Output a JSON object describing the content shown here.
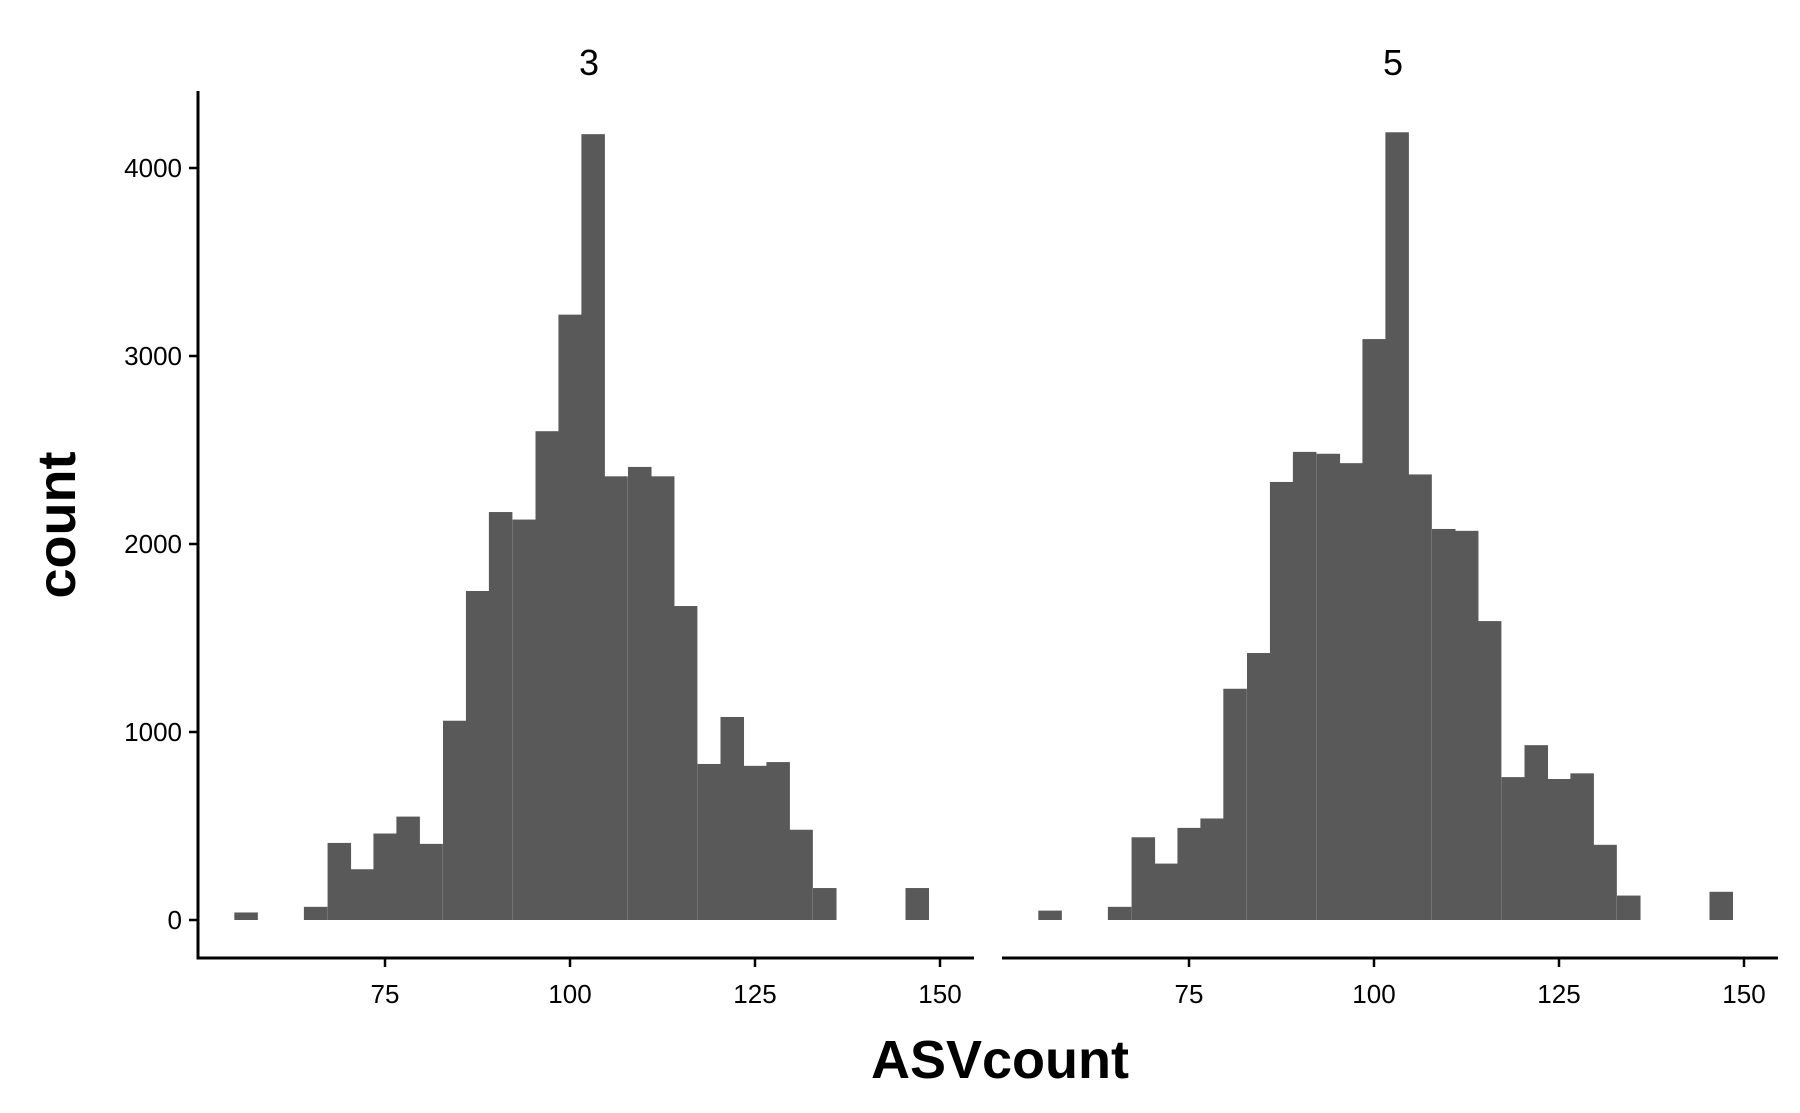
{
  "chart_data": {
    "type": "bar",
    "xlabel": "ASVcount",
    "ylabel": "count",
    "xlim": [
      52,
      154
    ],
    "ylim": [
      -200,
      4450
    ],
    "x_ticks": [
      75,
      100,
      125,
      150
    ],
    "x_tick_labels": [
      "75",
      "100",
      "125",
      "150"
    ],
    "y_ticks": [
      0,
      1000,
      2000,
      3000,
      4000
    ],
    "y_tick_labels": [
      "0",
      "1000",
      "2000",
      "3000",
      "4000"
    ],
    "grid": false,
    "bin_width": 3.125,
    "bar_color": "#595959",
    "panels": [
      {
        "strip_label": "3",
        "bins": [
          {
            "x": 56.2,
            "count": 40
          },
          {
            "x": 65.6,
            "count": 70
          },
          {
            "x": 68.8,
            "count": 410
          },
          {
            "x": 71.9,
            "count": 270
          },
          {
            "x": 75.0,
            "count": 460
          },
          {
            "x": 78.1,
            "count": 550
          },
          {
            "x": 81.2,
            "count": 405
          },
          {
            "x": 84.4,
            "count": 1060
          },
          {
            "x": 87.5,
            "count": 1750
          },
          {
            "x": 90.6,
            "count": 2170
          },
          {
            "x": 93.8,
            "count": 2130
          },
          {
            "x": 96.9,
            "count": 2600
          },
          {
            "x": 100.0,
            "count": 3220
          },
          {
            "x": 103.1,
            "count": 4180
          },
          {
            "x": 106.2,
            "count": 2360
          },
          {
            "x": 109.4,
            "count": 2410
          },
          {
            "x": 112.5,
            "count": 2360
          },
          {
            "x": 115.6,
            "count": 1670
          },
          {
            "x": 118.8,
            "count": 830
          },
          {
            "x": 121.9,
            "count": 1080
          },
          {
            "x": 125.0,
            "count": 820
          },
          {
            "x": 128.1,
            "count": 840
          },
          {
            "x": 131.2,
            "count": 480
          },
          {
            "x": 134.4,
            "count": 170
          },
          {
            "x": 146.9,
            "count": 170
          }
        ]
      },
      {
        "strip_label": "5",
        "bins": [
          {
            "x": 56.2,
            "count": 50
          },
          {
            "x": 65.6,
            "count": 70
          },
          {
            "x": 68.8,
            "count": 440
          },
          {
            "x": 71.9,
            "count": 300
          },
          {
            "x": 75.0,
            "count": 490
          },
          {
            "x": 78.1,
            "count": 540
          },
          {
            "x": 81.2,
            "count": 1230
          },
          {
            "x": 84.4,
            "count": 1420
          },
          {
            "x": 87.5,
            "count": 2330
          },
          {
            "x": 90.6,
            "count": 2490
          },
          {
            "x": 93.8,
            "count": 2480
          },
          {
            "x": 96.9,
            "count": 2430
          },
          {
            "x": 100.0,
            "count": 3090
          },
          {
            "x": 103.1,
            "count": 4190
          },
          {
            "x": 106.2,
            "count": 2370
          },
          {
            "x": 109.4,
            "count": 2080
          },
          {
            "x": 112.5,
            "count": 2070
          },
          {
            "x": 115.6,
            "count": 1590
          },
          {
            "x": 118.8,
            "count": 760
          },
          {
            "x": 121.9,
            "count": 930
          },
          {
            "x": 125.0,
            "count": 750
          },
          {
            "x": 128.1,
            "count": 780
          },
          {
            "x": 131.2,
            "count": 400
          },
          {
            "x": 134.4,
            "count": 130
          },
          {
            "x": 146.9,
            "count": 150
          }
        ]
      }
    ]
  }
}
